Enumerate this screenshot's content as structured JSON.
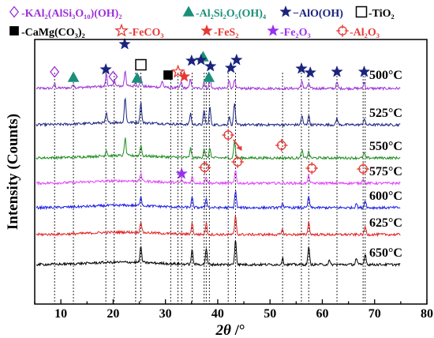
{
  "chart_data": {
    "type": "line",
    "xlabel_var": "2θ",
    "xlabel_unit": "/°",
    "ylabel": "Intensity (Counts)",
    "xlim": [
      5,
      80
    ],
    "xticks": [
      10,
      20,
      30,
      40,
      50,
      60,
      70,
      80
    ],
    "grid": false,
    "legend": [
      {
        "name": "-KAl₂(AlSi₃O₁₀)(OH)₂",
        "marker": "diamond",
        "color": "#9b30d9"
      },
      {
        "name": "-Al₂Si₂O₅(OH)₄",
        "marker": "triangle",
        "color": "#1a8f7a"
      },
      {
        "name": "−AlO(OH)",
        "marker": "star-filled",
        "color": "#1a237e"
      },
      {
        "name": "-TiO₂",
        "marker": "square-open",
        "color": "#000000"
      },
      {
        "name": "-CaMg(CO₃)₂",
        "marker": "square-filled",
        "color": "#000000"
      },
      {
        "name": "-FeCO₃",
        "marker": "star-open",
        "color": "#e53935"
      },
      {
        "name": "-FeS₂",
        "marker": "star-filled",
        "color": "#e53935"
      },
      {
        "name": "-Fe₂O₃",
        "marker": "star-filled",
        "color": "#9b30f0"
      },
      {
        "name": "-Al₂O₃",
        "marker": "circle-cross",
        "color": "#e53935"
      }
    ],
    "reference_lines_2theta": [
      8.8,
      12.4,
      18.6,
      20.2,
      24.3,
      25.3,
      31.0,
      32.4,
      33.1,
      35.1,
      37.4,
      37.8,
      38.4,
      42.0,
      43.4,
      52.4,
      56.0,
      57.4,
      62.8,
      67.8,
      68.2
    ],
    "series": [
      {
        "name": "500°C",
        "color": "#9b30d9",
        "peaks": [
          [
            8.8,
            6
          ],
          [
            12.4,
            5
          ],
          [
            18.7,
            16
          ],
          [
            20.2,
            8
          ],
          [
            22.3,
            20
          ],
          [
            24.3,
            6
          ],
          [
            25.3,
            12
          ],
          [
            29.4,
            8
          ],
          [
            33.0,
            7
          ],
          [
            34.8,
            12
          ],
          [
            37.4,
            8
          ],
          [
            38.5,
            16
          ],
          [
            42.2,
            10
          ],
          [
            43.2,
            12
          ],
          [
            56.1,
            10
          ],
          [
            57.4,
            7
          ],
          [
            62.8,
            8
          ],
          [
            68.0,
            8
          ]
        ]
      },
      {
        "name": "525°C",
        "color": "#1a237e",
        "peaks": [
          [
            18.7,
            12
          ],
          [
            22.3,
            32
          ],
          [
            25.3,
            26
          ],
          [
            34.8,
            14
          ],
          [
            37.4,
            18
          ],
          [
            38.5,
            22
          ],
          [
            42.2,
            10
          ],
          [
            43.2,
            28
          ],
          [
            56.1,
            12
          ],
          [
            57.4,
            12
          ],
          [
            62.8,
            9
          ],
          [
            68.0,
            8
          ]
        ]
      },
      {
        "name": "550°C",
        "color": "#1e8c1e",
        "peaks": [
          [
            18.7,
            8
          ],
          [
            22.3,
            22
          ],
          [
            25.3,
            14
          ],
          [
            34.8,
            12
          ],
          [
            37.4,
            12
          ],
          [
            38.5,
            12
          ],
          [
            43.2,
            22
          ],
          [
            56.1,
            10
          ],
          [
            57.4,
            8
          ],
          [
            68.0,
            6
          ]
        ]
      },
      {
        "name": "575°C",
        "color": "#e040fb",
        "peaks": [
          [
            25.3,
            10
          ],
          [
            33.1,
            4
          ],
          [
            35.1,
            8
          ],
          [
            37.8,
            8
          ],
          [
            43.4,
            16
          ],
          [
            57.4,
            10
          ],
          [
            67.8,
            6
          ]
        ]
      },
      {
        "name": "600°C",
        "color": "#1e1ee8",
        "peaks": [
          [
            25.3,
            12
          ],
          [
            35.1,
            12
          ],
          [
            37.8,
            12
          ],
          [
            43.4,
            22
          ],
          [
            52.4,
            6
          ],
          [
            57.4,
            14
          ],
          [
            66.5,
            6
          ],
          [
            68.2,
            10
          ]
        ]
      },
      {
        "name": "625°C",
        "color": "#e02020",
        "peaks": [
          [
            25.3,
            14
          ],
          [
            35.1,
            14
          ],
          [
            37.8,
            14
          ],
          [
            43.4,
            24
          ],
          [
            52.4,
            6
          ],
          [
            57.4,
            16
          ],
          [
            68.2,
            10
          ]
        ]
      },
      {
        "name": "650°C",
        "color": "#000000",
        "peaks": [
          [
            25.3,
            20
          ],
          [
            35.1,
            18
          ],
          [
            37.8,
            20
          ],
          [
            43.4,
            32
          ],
          [
            52.4,
            8
          ],
          [
            57.4,
            22
          ],
          [
            61.3,
            5
          ],
          [
            66.5,
            8
          ],
          [
            68.2,
            14
          ]
        ]
      }
    ],
    "annotations": [
      {
        "marker": "diamond",
        "color": "#9b30d9",
        "x": 8.8,
        "series": "500°C"
      },
      {
        "marker": "diamond",
        "color": "#9b30d9",
        "x": 20.0,
        "series": "500°C"
      },
      {
        "marker": "triangle",
        "color": "#1a8f7a",
        "x": 12.4,
        "series": "500°C"
      },
      {
        "marker": "triangle",
        "color": "#1a8f7a",
        "x": 24.6,
        "series": "500°C"
      },
      {
        "marker": "triangle",
        "color": "#1a8f7a",
        "x": 37.2,
        "series": "500°C"
      },
      {
        "marker": "triangle",
        "color": "#1a8f7a",
        "x": 38.3,
        "series": "500°C"
      },
      {
        "marker": "star-filled",
        "color": "#1a237e",
        "x": 18.6,
        "series": "500°C"
      },
      {
        "marker": "star-filled",
        "color": "#1a237e",
        "x": 22.2,
        "series": "500°C"
      },
      {
        "marker": "star-filled",
        "color": "#1a237e",
        "x": 35.0,
        "series": "500°C"
      },
      {
        "marker": "star-filled",
        "color": "#1a237e",
        "x": 36.8,
        "series": "500°C"
      },
      {
        "marker": "star-filled",
        "color": "#1a237e",
        "x": 38.6,
        "series": "500°C"
      },
      {
        "marker": "star-filled",
        "color": "#1a237e",
        "x": 42.5,
        "series": "500°C"
      },
      {
        "marker": "star-filled",
        "color": "#1a237e",
        "x": 43.6,
        "series": "500°C"
      },
      {
        "marker": "star-filled",
        "color": "#1a237e",
        "x": 56.0,
        "series": "500°C"
      },
      {
        "marker": "star-filled",
        "color": "#1a237e",
        "x": 57.7,
        "series": "500°C"
      },
      {
        "marker": "star-filled",
        "color": "#1a237e",
        "x": 62.8,
        "series": "500°C"
      },
      {
        "marker": "star-filled",
        "color": "#1a237e",
        "x": 68.0,
        "series": "500°C"
      },
      {
        "marker": "square-open",
        "color": "#000000",
        "x": 25.3,
        "series": "500°C"
      },
      {
        "marker": "square-filled",
        "color": "#000000",
        "x": 30.5,
        "series": "500°C"
      },
      {
        "marker": "star-open",
        "color": "#e53935",
        "x": 32.4,
        "series": "500°C"
      },
      {
        "marker": "star-filled",
        "color": "#e53935",
        "x": 33.6,
        "series": "500°C"
      },
      {
        "marker": "circle-cross",
        "color": "#e53935",
        "x": 42.0,
        "series": "550°C"
      },
      {
        "marker": "circle-cross",
        "color": "#e53935",
        "x": 52.2,
        "series": "550°C"
      },
      {
        "marker": "circle-cross",
        "color": "#e53935",
        "x": 43.8,
        "series": "575°C"
      },
      {
        "marker": "circle-cross",
        "color": "#e53935",
        "x": 37.5,
        "series": "575°C"
      },
      {
        "marker": "circle-cross",
        "color": "#e53935",
        "x": 58.0,
        "series": "575°C"
      },
      {
        "marker": "circle-cross",
        "color": "#e53935",
        "x": 67.8,
        "series": "575°C"
      },
      {
        "marker": "star-filled",
        "color": "#9b30f0",
        "x": 33.1,
        "series": "575°C"
      }
    ]
  }
}
